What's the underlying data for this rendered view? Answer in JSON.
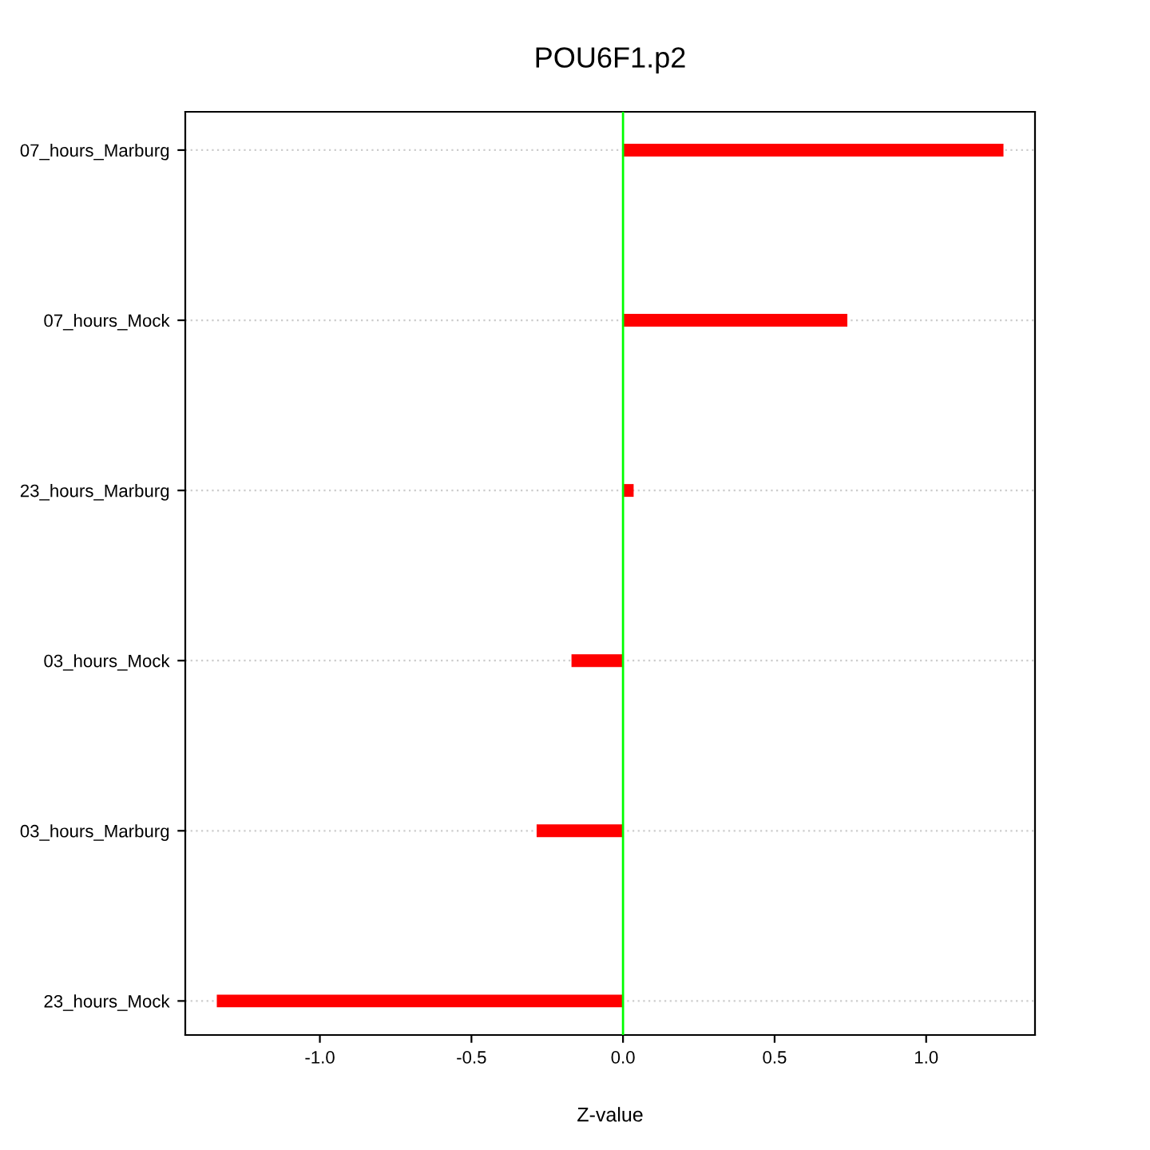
{
  "chart_data": {
    "type": "bar",
    "orientation": "horizontal",
    "title": "POU6F1.p2",
    "xlabel": "Z-value",
    "categories": [
      "07_hours_Marburg",
      "07_hours_Mock",
      "23_hours_Marburg",
      "03_hours_Mock",
      "03_hours_Marburg",
      "23_hours_Mock"
    ],
    "values": [
      1.255,
      0.74,
      0.035,
      -0.17,
      -0.285,
      -1.34
    ],
    "color": "#ff0000",
    "xlim": [
      -1.444,
      1.359
    ],
    "xticks": [
      {
        "value": -1,
        "label": "-1.0"
      },
      -0.5,
      {
        "value": 0,
        "label": "0.0"
      },
      0.5,
      {
        "value": 1,
        "label": "1.0"
      }
    ],
    "grid": "y",
    "ref_lines": [
      {
        "axis": "x",
        "value": 0,
        "color": "#00ff00"
      }
    ]
  }
}
